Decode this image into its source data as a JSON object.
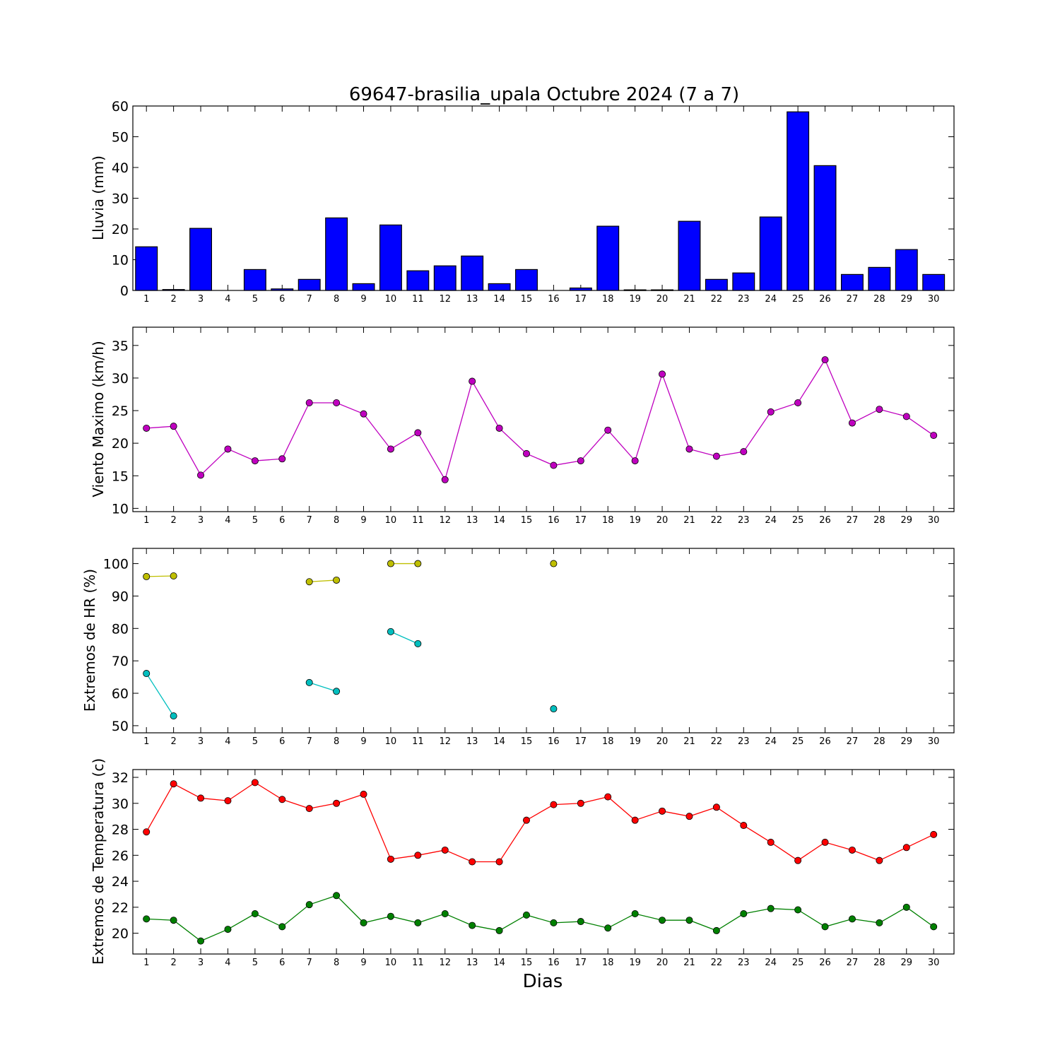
{
  "chart_data": [
    {
      "type": "bar",
      "title": "69647-brasilia_upala Octubre 2024  (7 a 7)",
      "xlabel": "",
      "ylabel": "Lluvia (mm)",
      "categories": [
        "1",
        "2",
        "3",
        "4",
        "5",
        "6",
        "7",
        "8",
        "9",
        "10",
        "11",
        "12",
        "13",
        "14",
        "15",
        "16",
        "17",
        "18",
        "19",
        "20",
        "21",
        "22",
        "23",
        "24",
        "25",
        "26",
        "27",
        "28",
        "29",
        "30"
      ],
      "values": [
        14.2,
        0.3,
        20.2,
        0,
        6.8,
        0.5,
        3.6,
        23.6,
        2.2,
        21.3,
        6.4,
        8.0,
        11.2,
        2.2,
        6.8,
        0,
        0.8,
        20.9,
        0.2,
        0.2,
        22.5,
        3.6,
        5.7,
        23.9,
        58.1,
        40.6,
        5.2,
        7.5,
        13.3,
        5.2
      ],
      "ylim": [
        0,
        60
      ],
      "yticks": [
        0,
        10,
        20,
        30,
        40,
        50,
        60
      ],
      "color": "#0000ff",
      "grid": false
    },
    {
      "type": "line",
      "title": "",
      "xlabel": "",
      "ylabel": "Viento Maximo (km/h)",
      "x": [
        1,
        2,
        3,
        4,
        5,
        6,
        7,
        8,
        9,
        10,
        11,
        12,
        13,
        14,
        15,
        16,
        17,
        18,
        19,
        20,
        21,
        22,
        23,
        24,
        25,
        26,
        27,
        28,
        29,
        30
      ],
      "series": [
        {
          "values": [
            22.3,
            22.6,
            15.1,
            19.1,
            17.3,
            17.6,
            26.2,
            26.2,
            24.5,
            19.1,
            21.6,
            14.4,
            29.5,
            22.3,
            18.4,
            16.6,
            17.3,
            22.0,
            17.3,
            30.6,
            19.1,
            18.0,
            18.7,
            24.8,
            26.2,
            32.8,
            23.1,
            25.2,
            24.1,
            21.2
          ],
          "color": "#bf00bf"
        }
      ],
      "ylim": [
        9.5,
        37.8
      ],
      "yticks": [
        10,
        15,
        20,
        25,
        30,
        35
      ],
      "grid": false
    },
    {
      "type": "line",
      "title": "",
      "xlabel": "",
      "ylabel": "Extremos de HR (%)",
      "x": [
        1,
        2,
        3,
        4,
        5,
        6,
        7,
        8,
        9,
        10,
        11,
        12,
        13,
        14,
        15,
        16,
        17,
        18,
        19,
        20,
        21,
        22,
        23,
        24,
        25,
        26,
        27,
        28,
        29,
        30
      ],
      "series": [
        {
          "values": [
            96,
            96.2,
            null,
            null,
            null,
            null,
            94.4,
            94.9,
            null,
            100,
            100,
            null,
            null,
            null,
            null,
            100,
            null,
            null,
            null,
            null,
            null,
            null,
            null,
            null,
            null,
            null,
            null,
            null,
            null,
            null
          ],
          "color": "#bfbf00"
        },
        {
          "values": [
            66.1,
            53.0,
            null,
            null,
            null,
            null,
            63.3,
            60.6,
            null,
            79.0,
            75.3,
            null,
            null,
            null,
            null,
            55.2,
            null,
            null,
            null,
            null,
            null,
            null,
            null,
            null,
            null,
            null,
            null,
            null,
            null,
            null
          ],
          "color": "#00bfbf"
        }
      ],
      "ylim": [
        47.8,
        104.7
      ],
      "yticks": [
        50,
        60,
        70,
        80,
        90,
        100
      ],
      "grid": false
    },
    {
      "type": "line",
      "title": "",
      "xlabel": "Dias",
      "ylabel": "Extremos de Temperatura (c)",
      "x": [
        1,
        2,
        3,
        4,
        5,
        6,
        7,
        8,
        9,
        10,
        11,
        12,
        13,
        14,
        15,
        16,
        17,
        18,
        19,
        20,
        21,
        22,
        23,
        24,
        25,
        26,
        27,
        28,
        29,
        30
      ],
      "series": [
        {
          "values": [
            27.8,
            31.5,
            30.4,
            30.2,
            31.6,
            30.3,
            29.6,
            30.0,
            30.7,
            25.7,
            26.0,
            26.4,
            25.5,
            25.5,
            28.7,
            29.9,
            30.0,
            30.5,
            28.7,
            29.4,
            29.0,
            29.7,
            28.3,
            27.0,
            25.6,
            27.0,
            26.4,
            25.6,
            26.6,
            27.6
          ],
          "color": "#ff0000"
        },
        {
          "values": [
            21.1,
            21.0,
            19.4,
            20.3,
            21.5,
            20.5,
            22.2,
            22.9,
            20.8,
            21.3,
            20.8,
            21.5,
            20.6,
            20.2,
            21.4,
            20.8,
            20.9,
            20.4,
            21.5,
            21.0,
            21.0,
            20.2,
            21.5,
            21.9,
            21.8,
            20.5,
            21.1,
            20.8,
            22.0,
            20.5
          ],
          "color": "#008000"
        }
      ],
      "ylim": [
        18.4,
        32.6
      ],
      "yticks": [
        20,
        22,
        24,
        26,
        28,
        30,
        32
      ],
      "grid": false
    }
  ]
}
